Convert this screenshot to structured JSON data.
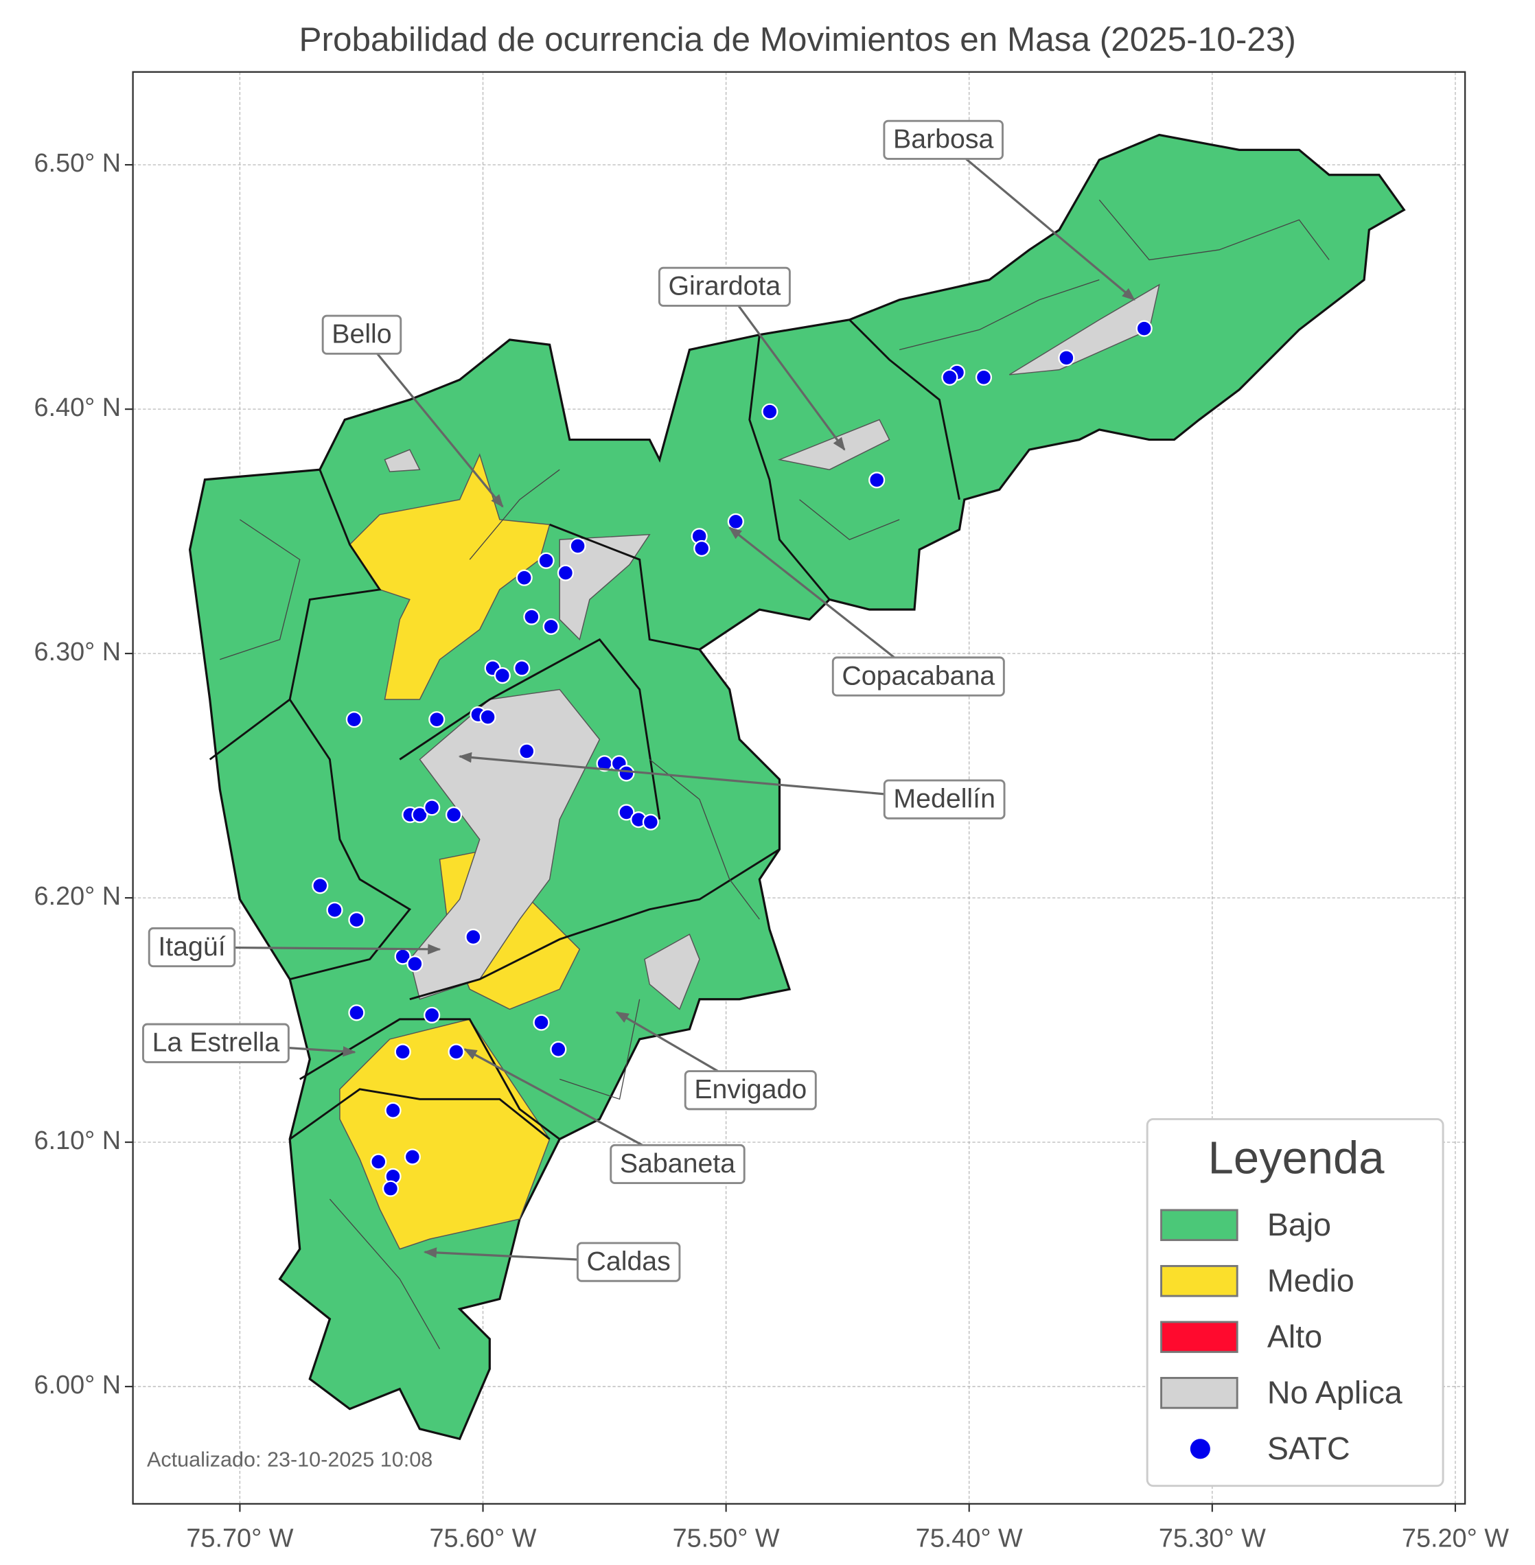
{
  "chart_data": {
    "type": "map",
    "title": "Probabilidad de ocurrencia de Movimientos en Masa (2025-10-23)",
    "xlim": [
      -75.744,
      -75.196
    ],
    "ylim": [
      5.952,
      6.538
    ],
    "xticks": [
      {
        "value": -75.7,
        "label": "75.70° W"
      },
      {
        "value": -75.6,
        "label": "75.60° W"
      },
      {
        "value": -75.5,
        "label": "75.50° W"
      },
      {
        "value": -75.4,
        "label": "75.40° W"
      },
      {
        "value": -75.3,
        "label": "75.30° W"
      },
      {
        "value": -75.2,
        "label": "75.20° W"
      }
    ],
    "yticks": [
      {
        "value": 6.0,
        "label": "6.00° N"
      },
      {
        "value": 6.1,
        "label": "6.10° N"
      },
      {
        "value": 6.2,
        "label": "6.20° N"
      },
      {
        "value": 6.3,
        "label": "6.30° N"
      },
      {
        "value": 6.4,
        "label": "6.40° N"
      },
      {
        "value": 6.5,
        "label": "6.50° N"
      }
    ],
    "grid": true,
    "labels": [
      "Barbosa",
      "Girardota",
      "Bello",
      "Copacabana",
      "Medellín",
      "Itagüí",
      "La Estrella",
      "Envigado",
      "Sabaneta",
      "Caldas"
    ],
    "legend": {
      "title": "Leyenda",
      "position": "lower right",
      "items": [
        {
          "name": "Bajo",
          "color": "#4bc878"
        },
        {
          "name": "Medio",
          "color": "#fbdf2b"
        },
        {
          "name": "Alto",
          "color": "#ff0a2e"
        },
        {
          "name": "No Aplica",
          "color": "#d3d3d3"
        }
      ]
    },
    "satc": {
      "name": "SATC",
      "color": "#0000ee",
      "lon": [
        -75.328,
        -75.36,
        -75.394,
        -75.405,
        -75.408,
        -75.482,
        -75.438,
        -75.496,
        -75.511,
        -75.51,
        -75.561,
        -75.574,
        -75.566,
        -75.583,
        -75.58,
        -75.572,
        -75.596,
        -75.592,
        -75.584,
        -75.653,
        -75.619,
        -75.602,
        -75.598,
        -75.582,
        -75.55,
        -75.544,
        -75.541,
        -75.541,
        -75.536,
        -75.531,
        -75.63,
        -75.626,
        -75.621,
        -75.612,
        -75.667,
        -75.661,
        -75.652,
        -75.604,
        -75.633,
        -75.628,
        -75.652,
        -75.621,
        -75.576,
        -75.569,
        -75.633,
        -75.611,
        -75.637,
        -75.643,
        -75.629,
        -75.637,
        -75.638
      ],
      "lat": [
        6.433,
        6.421,
        6.413,
        6.415,
        6.413,
        6.399,
        6.371,
        6.354,
        6.348,
        6.343,
        6.344,
        6.338,
        6.333,
        6.331,
        6.315,
        6.311,
        6.294,
        6.291,
        6.294,
        6.273,
        6.273,
        6.275,
        6.274,
        6.26,
        6.255,
        6.255,
        6.251,
        6.235,
        6.232,
        6.231,
        6.234,
        6.234,
        6.237,
        6.234,
        6.205,
        6.195,
        6.191,
        6.184,
        6.176,
        6.173,
        6.153,
        6.152,
        6.149,
        6.138,
        6.137,
        6.137,
        6.113,
        6.092,
        6.094,
        6.086,
        6.081
      ]
    },
    "note": "Actualizado: 23-10-2025 10:08"
  }
}
